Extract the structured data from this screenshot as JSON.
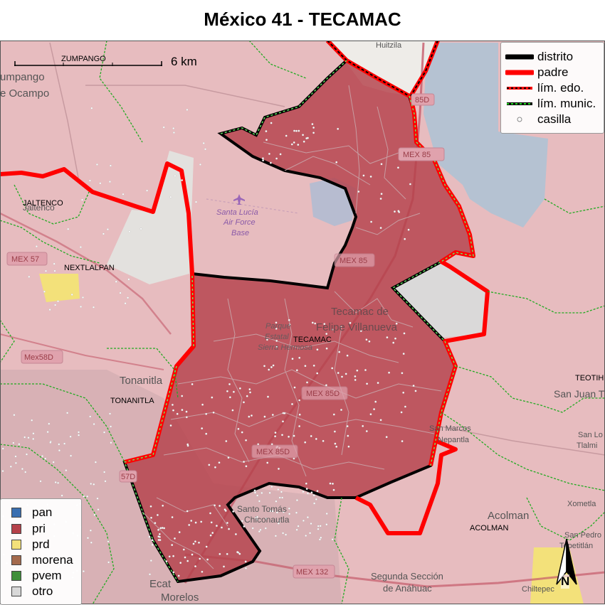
{
  "title": "México 41 - TECAMAC",
  "legend_lines": [
    {
      "label": "distrito",
      "icon": "black-line-icon",
      "color": "#000000"
    },
    {
      "label": "padre",
      "icon": "red-line-icon",
      "color": "#ff0000"
    },
    {
      "label": "lím. edo.",
      "icon": "red-dashed-line-icon",
      "color": "#ff0000"
    },
    {
      "label": "lím. munic.",
      "icon": "green-dashed-line-icon",
      "color": "#22cc22"
    },
    {
      "label": "casilla",
      "icon": "hollow-circle-icon",
      "color": "#888888"
    }
  ],
  "legend_parties": [
    {
      "label": "pan",
      "color": "#3a6fb0"
    },
    {
      "label": "pri",
      "color": "#b5414a"
    },
    {
      "label": "prd",
      "color": "#f3e17a"
    },
    {
      "label": "morena",
      "color": "#a46a4d"
    },
    {
      "label": "pvem",
      "color": "#3f8f3a"
    },
    {
      "label": "otro",
      "color": "#d8d8d8"
    }
  ],
  "scale": {
    "label": "6 km"
  },
  "north": {
    "label": "N"
  },
  "municipality_labels": [
    {
      "id": "zumpango",
      "text": "ZUMPANGO"
    },
    {
      "id": "jaltenco",
      "text": "JALTENCO"
    },
    {
      "id": "nextlalpan",
      "text": "NEXTLALPAN"
    },
    {
      "id": "tecamac",
      "text": "TECAMAC"
    },
    {
      "id": "tonanitla",
      "text": "TONANITLA"
    },
    {
      "id": "acolman",
      "text": "ACOLMAN"
    },
    {
      "id": "teotihuacan",
      "text": "TEOTIHUACAN"
    }
  ],
  "basemap_labels": [
    {
      "id": "huitzila",
      "text": "Huitzila"
    },
    {
      "id": "zumpango-ocampo-1",
      "text": "umpango"
    },
    {
      "id": "zumpango-ocampo-2",
      "text": "e Ocampo"
    },
    {
      "id": "jaltenco-town",
      "text": "Jaltenco"
    },
    {
      "id": "santa-lucia-1",
      "text": "Santa Lucía"
    },
    {
      "id": "santa-lucia-2",
      "text": "Air Force"
    },
    {
      "id": "santa-lucia-3",
      "text": "Base"
    },
    {
      "id": "tecamac-felipe-1",
      "text": "Tecamac de"
    },
    {
      "id": "tecamac-felipe-2",
      "text": "Felipe Villanueva"
    },
    {
      "id": "parque-1",
      "text": "Parque"
    },
    {
      "id": "parque-2",
      "text": "Estatal"
    },
    {
      "id": "parque-3",
      "text": "Sierra Hermosa"
    },
    {
      "id": "tonanitla-town",
      "text": "Tonanitla"
    },
    {
      "id": "san-juan",
      "text": "San Juan T"
    },
    {
      "id": "san-marcos-1",
      "text": "San Marcos"
    },
    {
      "id": "san-marcos-2",
      "text": "Nepantla"
    },
    {
      "id": "san-lorenzo-1",
      "text": "San Lo"
    },
    {
      "id": "san-lorenzo-2",
      "text": "Tlalmi"
    },
    {
      "id": "xometla",
      "text": "Xometla"
    },
    {
      "id": "acolman-town",
      "text": "Acolman"
    },
    {
      "id": "san-pedro-1",
      "text": "San Pedro"
    },
    {
      "id": "san-pedro-2",
      "text": "Tepetitlán"
    },
    {
      "id": "santo-tomas-1",
      "text": "Santo Tomás"
    },
    {
      "id": "santo-tomas-2",
      "text": "Chiconautla"
    },
    {
      "id": "segunda-1",
      "text": "Segunda Sección"
    },
    {
      "id": "segunda-2",
      "text": "de Anáhuac"
    },
    {
      "id": "ecatepec-1",
      "text": "Ecat"
    },
    {
      "id": "ecatepec-2",
      "text": "Morelos"
    },
    {
      "id": "chiltepec",
      "text": "Chiltepec"
    }
  ],
  "road_shields": [
    {
      "id": "mex85d-a",
      "text": "85D"
    },
    {
      "id": "mex85-a",
      "text": "MEX 85"
    },
    {
      "id": "mex85-b",
      "text": "MEX 85"
    },
    {
      "id": "mex57",
      "text": "MEX 57"
    },
    {
      "id": "mex58d",
      "text": "Mex58D"
    },
    {
      "id": "mex85d-b",
      "text": "MEX 85D"
    },
    {
      "id": "mex85d-c",
      "text": "MEX 85D"
    },
    {
      "id": "mex132",
      "text": "MEX 132"
    },
    {
      "id": "r57d",
      "text": "57D"
    }
  ]
}
